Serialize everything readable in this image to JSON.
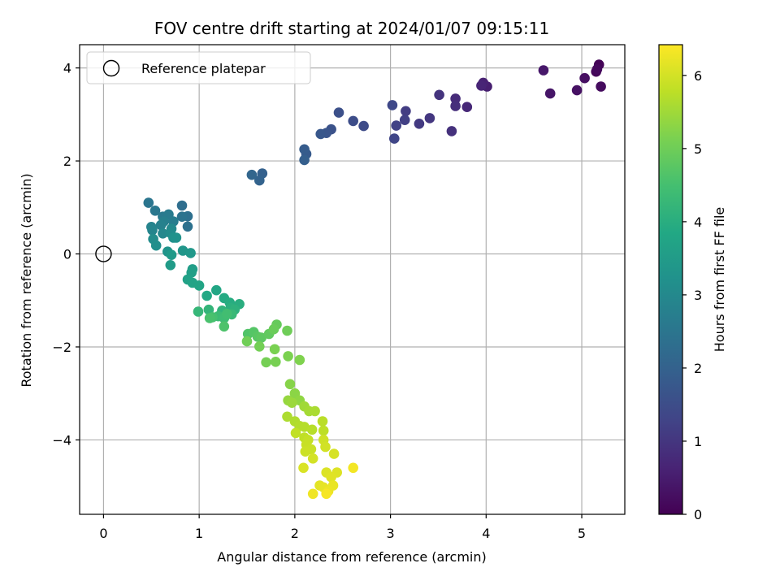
{
  "chart_data": {
    "type": "scatter",
    "title": "FOV centre drift starting at 2024/01/07 09:15:11",
    "xlabel": "Angular distance from reference (arcmin)",
    "ylabel": "Rotation from reference (arcmin)",
    "xlim": [
      -0.25,
      5.45
    ],
    "ylim": [
      -5.6,
      4.5
    ],
    "xticks": [
      0,
      1,
      2,
      3,
      4,
      5
    ],
    "yticks": [
      -4,
      -2,
      0,
      2,
      4
    ],
    "xtick_labels": [
      "0",
      "1",
      "2",
      "3",
      "4",
      "5"
    ],
    "ytick_labels": [
      "−4",
      "−2",
      "0",
      "2",
      "4"
    ],
    "grid": true,
    "legend": {
      "placement": "upper-left",
      "entries": [
        "Reference platepar"
      ]
    },
    "reference_point": {
      "x": 0,
      "y": 0,
      "marker": "open-circle"
    },
    "colorbar": {
      "label": "Hours from first FF file",
      "range": [
        0,
        6.42
      ],
      "ticks": [
        0,
        1,
        2,
        3,
        4,
        5,
        6
      ],
      "tick_labels": [
        "0",
        "1",
        "2",
        "3",
        "4",
        "5",
        "6"
      ],
      "colormap": "viridis"
    },
    "points": [
      [
        5.18,
        4.07,
        0.05
      ],
      [
        5.15,
        3.92,
        0.1
      ],
      [
        5.16,
        3.97,
        0.15
      ],
      [
        5.2,
        3.6,
        0.2
      ],
      [
        5.03,
        3.78,
        0.25
      ],
      [
        4.95,
        3.52,
        0.3
      ],
      [
        4.67,
        3.45,
        0.36
      ],
      [
        4.6,
        3.95,
        0.42
      ],
      [
        4.01,
        3.6,
        0.55
      ],
      [
        3.97,
        3.68,
        0.6
      ],
      [
        3.95,
        3.62,
        0.66
      ],
      [
        3.8,
        3.16,
        0.72
      ],
      [
        3.68,
        3.34,
        0.78
      ],
      [
        3.68,
        3.18,
        0.84
      ],
      [
        3.64,
        2.64,
        0.9
      ],
      [
        3.51,
        3.42,
        0.96
      ],
      [
        3.41,
        2.92,
        1.02
      ],
      [
        3.3,
        2.8,
        1.08
      ],
      [
        3.16,
        3.07,
        1.14
      ],
      [
        3.15,
        2.88,
        1.2
      ],
      [
        3.06,
        2.76,
        1.26
      ],
      [
        3.04,
        2.48,
        1.32
      ],
      [
        3.02,
        3.2,
        1.38
      ],
      [
        2.72,
        2.75,
        1.44
      ],
      [
        2.61,
        2.86,
        1.5
      ],
      [
        2.46,
        3.04,
        1.56
      ],
      [
        2.38,
        2.68,
        1.62
      ],
      [
        2.33,
        2.6,
        1.68
      ],
      [
        2.27,
        2.58,
        1.74
      ],
      [
        2.12,
        2.15,
        1.8
      ],
      [
        2.1,
        2.25,
        1.86
      ],
      [
        2.1,
        2.02,
        1.92
      ],
      [
        1.66,
        1.73,
        1.98
      ],
      [
        1.63,
        1.58,
        2.04
      ],
      [
        1.55,
        1.7,
        2.1
      ],
      [
        0.82,
        1.04,
        2.3
      ],
      [
        0.88,
        0.81,
        2.35
      ],
      [
        0.88,
        0.59,
        2.4
      ],
      [
        0.82,
        0.8,
        2.45
      ],
      [
        0.47,
        1.1,
        2.5
      ],
      [
        0.54,
        0.93,
        2.55
      ],
      [
        0.62,
        0.8,
        2.6
      ],
      [
        0.68,
        0.85,
        2.65
      ],
      [
        0.73,
        0.7,
        2.7
      ],
      [
        0.63,
        0.7,
        2.75
      ],
      [
        0.6,
        0.62,
        2.8
      ],
      [
        0.5,
        0.58,
        2.85
      ],
      [
        0.51,
        0.51,
        2.9
      ],
      [
        0.62,
        0.44,
        2.95
      ],
      [
        0.71,
        0.54,
        3.0
      ],
      [
        0.7,
        0.45,
        3.05
      ],
      [
        0.52,
        0.32,
        3.1
      ],
      [
        0.55,
        0.18,
        3.15
      ],
      [
        0.73,
        0.35,
        3.2
      ],
      [
        0.76,
        0.35,
        3.25
      ],
      [
        0.67,
        0.05,
        3.3
      ],
      [
        0.83,
        0.07,
        3.35
      ],
      [
        0.91,
        0.02,
        3.4
      ],
      [
        0.71,
        -0.02,
        3.45
      ],
      [
        0.7,
        -0.24,
        3.5
      ],
      [
        0.93,
        -0.33,
        3.55
      ],
      [
        0.92,
        -0.4,
        3.6
      ],
      [
        0.88,
        -0.55,
        3.65
      ],
      [
        0.93,
        -0.62,
        3.7
      ],
      [
        1.0,
        -0.68,
        3.75
      ],
      [
        1.18,
        -0.78,
        3.8
      ],
      [
        1.08,
        -0.9,
        3.85
      ],
      [
        1.26,
        -0.95,
        3.9
      ],
      [
        1.32,
        -1.05,
        3.95
      ],
      [
        1.42,
        -1.08,
        4.0
      ],
      [
        1.33,
        -1.16,
        4.05
      ],
      [
        1.37,
        -1.2,
        4.1
      ],
      [
        1.24,
        -1.22,
        4.15
      ],
      [
        1.1,
        -1.2,
        4.2
      ],
      [
        0.99,
        -1.24,
        4.25
      ],
      [
        1.34,
        -1.3,
        4.3
      ],
      [
        1.2,
        -1.34,
        4.35
      ],
      [
        1.26,
        -1.38,
        4.4
      ],
      [
        1.29,
        -1.29,
        4.45
      ],
      [
        1.14,
        -1.36,
        4.5
      ],
      [
        1.11,
        -1.38,
        4.55
      ],
      [
        1.26,
        -1.56,
        4.6
      ],
      [
        1.51,
        -1.72,
        4.65
      ],
      [
        1.57,
        -1.68,
        4.7
      ],
      [
        1.61,
        -1.78,
        4.75
      ],
      [
        1.65,
        -1.8,
        4.8
      ],
      [
        1.73,
        -1.72,
        4.85
      ],
      [
        1.81,
        -1.52,
        4.9
      ],
      [
        1.78,
        -1.62,
        4.95
      ],
      [
        1.92,
        -1.65,
        5.0
      ],
      [
        1.5,
        -1.88,
        5.02
      ],
      [
        1.63,
        -1.99,
        5.05
      ],
      [
        1.7,
        -2.33,
        5.08
      ],
      [
        1.8,
        -2.32,
        5.1
      ],
      [
        1.79,
        -2.05,
        5.12
      ],
      [
        1.93,
        -2.2,
        5.15
      ],
      [
        2.05,
        -2.28,
        5.18
      ],
      [
        1.95,
        -2.8,
        5.25
      ],
      [
        2.0,
        -3.0,
        5.3
      ],
      [
        2.05,
        -3.15,
        5.35
      ],
      [
        1.93,
        -3.15,
        5.4
      ],
      [
        1.97,
        -3.2,
        5.45
      ],
      [
        2.1,
        -3.28,
        5.5
      ],
      [
        2.15,
        -3.38,
        5.55
      ],
      [
        2.21,
        -3.38,
        5.6
      ],
      [
        1.92,
        -3.5,
        5.62
      ],
      [
        2.0,
        -3.6,
        5.65
      ],
      [
        2.05,
        -3.7,
        5.68
      ],
      [
        2.1,
        -3.72,
        5.7
      ],
      [
        2.18,
        -3.78,
        5.72
      ],
      [
        2.29,
        -3.6,
        5.75
      ],
      [
        2.3,
        -3.8,
        5.78
      ],
      [
        2.1,
        -3.95,
        5.8
      ],
      [
        2.01,
        -3.85,
        5.82
      ],
      [
        2.14,
        -4.0,
        5.85
      ],
      [
        2.12,
        -4.1,
        5.88
      ],
      [
        2.17,
        -4.2,
        5.9
      ],
      [
        2.11,
        -4.25,
        5.92
      ],
      [
        2.3,
        -4.0,
        5.95
      ],
      [
        2.32,
        -4.15,
        5.98
      ],
      [
        2.19,
        -4.4,
        6.0
      ],
      [
        2.41,
        -4.3,
        6.03
      ],
      [
        2.09,
        -4.6,
        6.06
      ],
      [
        2.33,
        -4.7,
        6.08
      ],
      [
        2.44,
        -4.7,
        6.1
      ],
      [
        2.38,
        -4.8,
        6.13
      ],
      [
        2.26,
        -4.98,
        6.16
      ],
      [
        2.3,
        -5.02,
        6.19
      ],
      [
        2.4,
        -4.98,
        6.22
      ],
      [
        2.35,
        -5.1,
        6.25
      ],
      [
        2.19,
        -5.16,
        6.28
      ],
      [
        2.61,
        -4.6,
        6.32
      ],
      [
        2.33,
        -5.16,
        6.35
      ]
    ]
  }
}
